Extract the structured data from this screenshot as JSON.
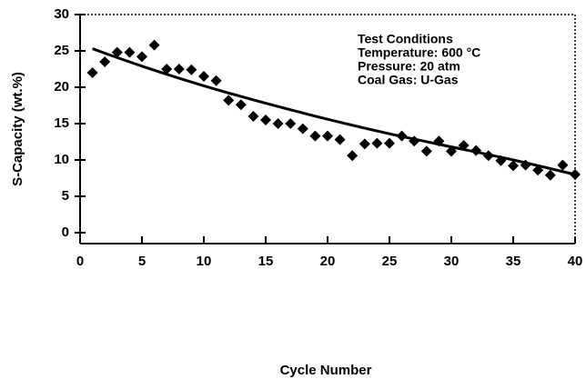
{
  "chart_data": {
    "type": "scatter",
    "xlabel": "Cycle Number",
    "ylabel": "S-Capacity (wt.%)",
    "annotations": [
      "Test Conditions",
      "Temperature: 600 °C",
      "Pressure: 20 atm",
      "Coal Gas: U-Gas"
    ],
    "xlim": [
      0,
      40
    ],
    "ylim": [
      -1.5,
      30
    ],
    "xticks": [
      0,
      5,
      10,
      15,
      20,
      25,
      30,
      35,
      40
    ],
    "yticks": [
      0,
      5,
      10,
      15,
      20,
      25,
      30
    ],
    "series": [
      {
        "type": "scatter",
        "color": "#000000",
        "x": [
          1,
          2,
          3,
          4,
          5,
          6,
          7,
          8,
          9,
          10,
          11,
          12,
          13,
          14,
          15,
          16,
          17,
          18,
          19,
          20,
          21,
          22,
          23,
          24,
          25,
          26,
          27,
          28,
          29,
          30,
          31,
          32,
          33,
          34,
          35,
          36,
          37,
          38,
          39,
          40
        ],
        "values": [
          22,
          23.5,
          24.8,
          24.8,
          24.2,
          25.8,
          22.5,
          22.5,
          22.4,
          21.5,
          20.9,
          18.2,
          17.6,
          16,
          15.5,
          15,
          15,
          14.3,
          13.3,
          13.3,
          12.8,
          10.6,
          12.2,
          12.3,
          12.3,
          13.3,
          12.6,
          11.2,
          12.6,
          11.2,
          12,
          11.3,
          10.6,
          9.9,
          9.2,
          9.3,
          8.6,
          7.9,
          9.3,
          8
        ]
      },
      {
        "type": "line",
        "color": "#000000",
        "x": [
          1,
          5,
          10,
          15,
          20,
          25,
          30,
          35,
          40
        ],
        "values": [
          25.3,
          22.9,
          20.2,
          17.8,
          15.6,
          13.6,
          11.8,
          10,
          8
        ]
      }
    ]
  }
}
